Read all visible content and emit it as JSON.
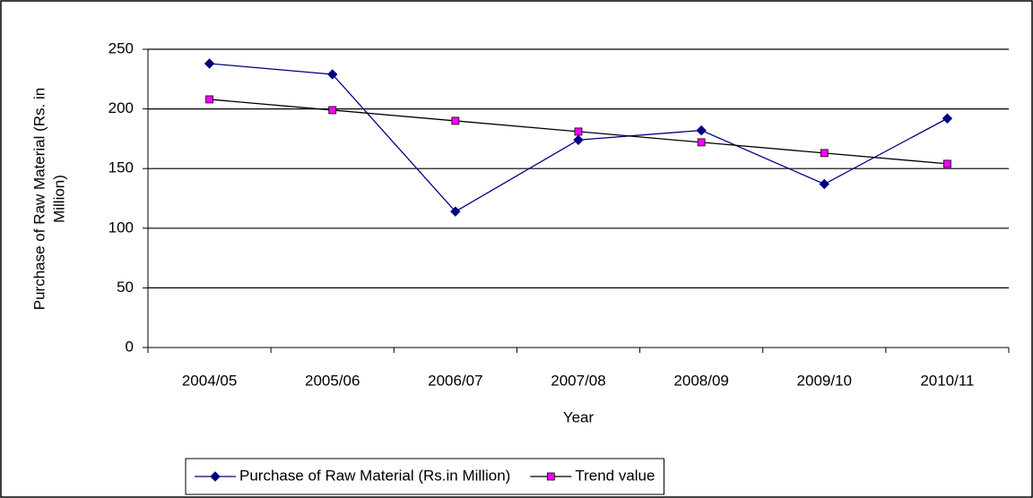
{
  "chart_data": {
    "type": "line",
    "xlabel": "Year",
    "ylabel": [
      "Purchase of Raw Material (Rs. in",
      "Million)"
    ],
    "categories": [
      "2004/05",
      "2005/06",
      "2006/07",
      "2007/08",
      "2008/09",
      "2009/10",
      "2010/11"
    ],
    "series": [
      {
        "name": "Purchase of Raw Material (Rs.in Million)",
        "color": "#000080",
        "marker": "diamond",
        "marker_color": "#000080",
        "values": [
          238,
          229,
          114,
          174,
          182,
          137,
          192
        ]
      },
      {
        "name": "Trend value",
        "color": "#000000",
        "marker": "square",
        "marker_color": "#ff00ff",
        "values": [
          208,
          199,
          190,
          181,
          172,
          163,
          154
        ]
      }
    ],
    "ylim": [
      0,
      250
    ],
    "yticks": [
      0,
      50,
      100,
      150,
      200,
      250
    ],
    "grid": true,
    "legend": "bottom"
  }
}
